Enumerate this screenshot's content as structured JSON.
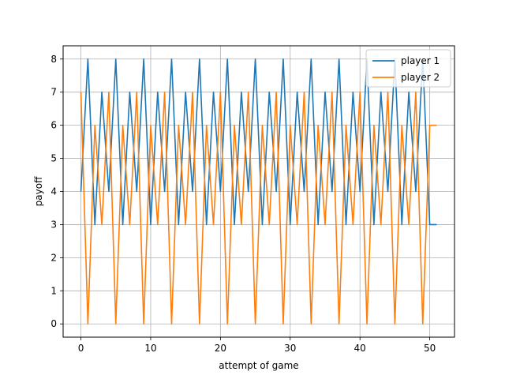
{
  "chart_data": {
    "type": "line",
    "title": "",
    "xlabel": "attempt of game",
    "ylabel": "payoff",
    "xlim": [
      -2.55,
      53.55
    ],
    "ylim": [
      -0.4,
      8.4
    ],
    "xticks": [
      0,
      10,
      20,
      30,
      40,
      50
    ],
    "yticks": [
      0,
      1,
      2,
      3,
      4,
      5,
      6,
      7,
      8
    ],
    "grid": true,
    "legend_position": "top-right",
    "series": [
      {
        "name": "player 1",
        "color": "#1f77b4",
        "x": [
          0,
          1,
          2,
          3,
          4,
          5,
          6,
          7,
          8,
          9,
          10,
          11,
          12,
          13,
          14,
          15,
          16,
          17,
          18,
          19,
          20,
          21,
          22,
          23,
          24,
          25,
          26,
          27,
          28,
          29,
          30,
          31,
          32,
          33,
          34,
          35,
          36,
          37,
          38,
          39,
          40,
          41,
          42,
          43,
          44,
          45,
          46,
          47,
          48,
          49,
          50,
          51
        ],
        "values": [
          4,
          8,
          3,
          7,
          4,
          8,
          3,
          7,
          4,
          8,
          3,
          7,
          4,
          8,
          3,
          7,
          4,
          8,
          3,
          7,
          4,
          8,
          3,
          7,
          4,
          8,
          3,
          7,
          4,
          8,
          3,
          7,
          4,
          8,
          3,
          7,
          4,
          8,
          3,
          7,
          4,
          8,
          3,
          7,
          4,
          8,
          3,
          7,
          4,
          8,
          3,
          3
        ]
      },
      {
        "name": "player 2",
        "color": "#ff7f0e",
        "x": [
          0,
          1,
          2,
          3,
          4,
          5,
          6,
          7,
          8,
          9,
          10,
          11,
          12,
          13,
          14,
          15,
          16,
          17,
          18,
          19,
          20,
          21,
          22,
          23,
          24,
          25,
          26,
          27,
          28,
          29,
          30,
          31,
          32,
          33,
          34,
          35,
          36,
          37,
          38,
          39,
          40,
          41,
          42,
          43,
          44,
          45,
          46,
          47,
          48,
          49,
          50,
          51
        ],
        "values": [
          7,
          0,
          6,
          3,
          7,
          0,
          6,
          3,
          7,
          0,
          6,
          3,
          7,
          0,
          6,
          3,
          7,
          0,
          6,
          3,
          7,
          0,
          6,
          3,
          7,
          0,
          6,
          3,
          7,
          0,
          6,
          3,
          7,
          0,
          6,
          3,
          7,
          0,
          6,
          3,
          7,
          0,
          6,
          3,
          7,
          0,
          6,
          3,
          7,
          0,
          6,
          6
        ]
      }
    ]
  }
}
